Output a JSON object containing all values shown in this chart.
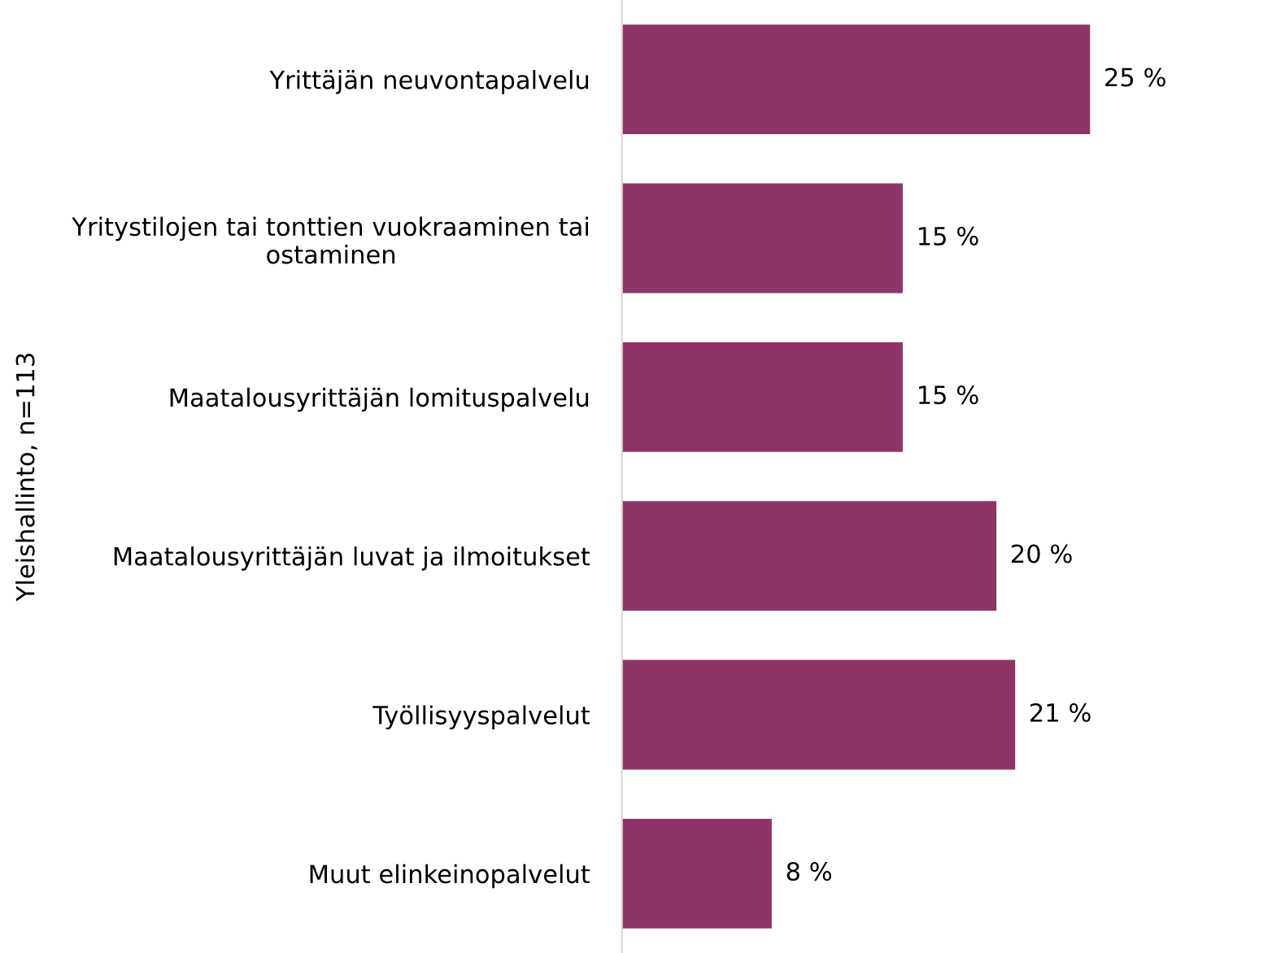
{
  "chart_data": {
    "type": "bar",
    "orientation": "horizontal",
    "ylabel": "Yleishallinto, n=113",
    "categories": [
      "Yrittäjän neuvontapalvelu",
      "Yritystilojen tai tonttien vuokraaminen tai\nostaminen",
      "Maatalousyrittäjän lomituspalvelu",
      "Maatalousyrittäjän luvat ja ilmoitukset",
      "Työllisyyspalvelut",
      "Muut elinkeinopalvelut"
    ],
    "values": [
      25,
      15,
      15,
      20,
      21,
      8
    ],
    "value_labels": [
      "25 %",
      "15 %",
      "15 %",
      "20 %",
      "21 %",
      "8 %"
    ],
    "color": "#8e3566",
    "grid": false,
    "legend": false,
    "tick_labels": "y"
  }
}
